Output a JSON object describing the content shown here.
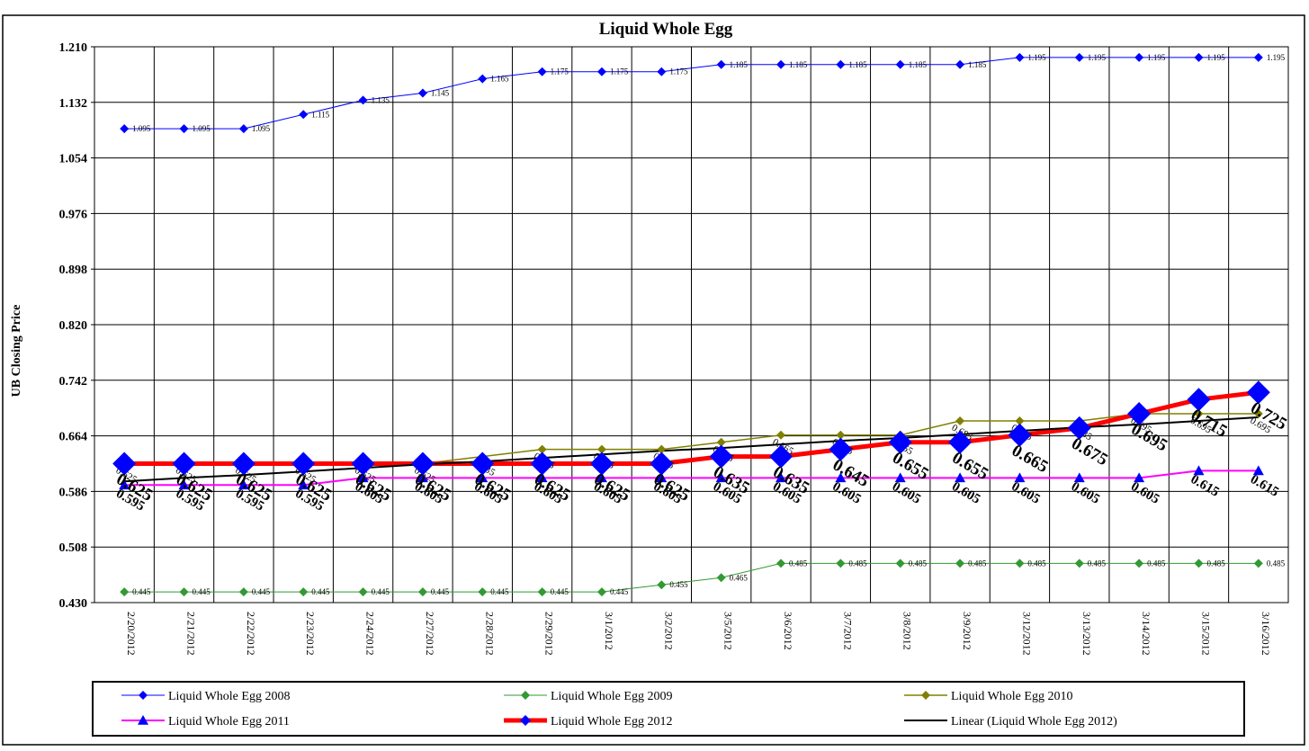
{
  "chart_data": {
    "type": "line",
    "title": "Liquid  Whole Egg",
    "y_label": "UB Closing Price",
    "categories": [
      "2/20/2012",
      "2/21/2012",
      "2/22/2012",
      "2/23/2012",
      "2/24/2012",
      "2/27/2012",
      "2/28/2012",
      "2/29/2012",
      "3/1/2012",
      "3/2/2012",
      "3/5/2012",
      "3/6/2012",
      "3/7/2012",
      "3/8/2012",
      "3/9/2012",
      "3/12/2012",
      "3/13/2012",
      "3/14/2012",
      "3/15/2012",
      "3/16/2012"
    ],
    "ylim": [
      0.43,
      1.21
    ],
    "yticks": [
      {
        "value": 0.43,
        "label": "0.430"
      },
      0.508,
      0.586,
      0.664,
      0.742,
      {
        "value": 0.82,
        "label": "0.820"
      },
      0.898,
      0.976,
      1.054,
      1.132,
      {
        "value": 1.21,
        "label": "1.210"
      }
    ],
    "grid": true,
    "series": [
      {
        "name": "Liquid Whole Egg 2008",
        "color": "#0000ff",
        "marker_color": "#0000ff",
        "marker": "diamond",
        "marker_size": 5,
        "line_width": 1,
        "label_size": 9,
        "label_rotate": 0,
        "values": [
          1.095,
          1.095,
          1.095,
          1.115,
          1.135,
          1.145,
          1.165,
          1.175,
          1.175,
          1.175,
          1.185,
          1.185,
          1.185,
          1.185,
          1.185,
          1.195,
          1.195,
          1.195,
          1.195,
          1.195
        ]
      },
      {
        "name": "Liquid Whole Egg 2009",
        "color": "#339933",
        "marker_color": "#339933",
        "marker": "diamond",
        "marker_size": 5,
        "line_width": 1,
        "label_size": 9,
        "label_rotate": 0,
        "values": [
          0.445,
          0.445,
          0.445,
          0.445,
          0.445,
          0.445,
          0.445,
          0.445,
          0.445,
          0.455,
          0.465,
          0.485,
          0.485,
          0.485,
          0.485,
          0.485,
          0.485,
          0.485,
          0.485,
          0.485
        ]
      },
      {
        "name": "Liquid Whole Egg 2010",
        "color": "#808000",
        "marker_color": "#808000",
        "marker": "diamond",
        "marker_size": 5,
        "line_width": 1.5,
        "label_size": 11,
        "label_rotate": 30,
        "values": [
          0.625,
          0.625,
          0.625,
          0.625,
          0.625,
          0.625,
          0.635,
          0.645,
          0.645,
          0.645,
          0.655,
          0.665,
          0.665,
          0.665,
          0.685,
          0.685,
          0.685,
          0.695,
          0.695,
          0.695
        ]
      },
      {
        "name": "Liquid Whole Egg 2011",
        "color": "#ff00ff",
        "marker_color": "#0000ff",
        "marker": "triangle",
        "marker_size": 6,
        "line_width": 2,
        "label_size": 15,
        "label_rotate": 30,
        "values": [
          0.595,
          0.595,
          0.595,
          0.595,
          0.605,
          0.605,
          0.605,
          0.605,
          0.605,
          0.605,
          0.605,
          0.605,
          0.605,
          0.605,
          0.605,
          0.605,
          0.605,
          0.605,
          0.615,
          0.615
        ]
      },
      {
        "name": "Liquid Whole Egg 2012",
        "color": "#ff0000",
        "marker_color": "#0000ff",
        "marker": "diamond",
        "marker_size": 13,
        "line_width": 5,
        "label_size": 19,
        "label_rotate": 30,
        "values": [
          0.625,
          0.625,
          0.625,
          0.625,
          0.625,
          0.625,
          0.625,
          0.625,
          0.625,
          0.625,
          0.635,
          0.635,
          0.645,
          0.655,
          0.655,
          0.665,
          0.675,
          0.695,
          0.715,
          0.725
        ]
      },
      {
        "name": "Linear (Liquid Whole Egg 2012)",
        "color": "#000000",
        "marker": "none",
        "line_width": 2,
        "values": [
          0.6,
          0.605,
          0.609,
          0.614,
          0.619,
          0.624,
          0.628,
          0.633,
          0.638,
          0.643,
          0.647,
          0.652,
          0.657,
          0.661,
          0.666,
          0.671,
          0.676,
          0.68,
          0.685,
          0.69
        ]
      }
    ]
  }
}
